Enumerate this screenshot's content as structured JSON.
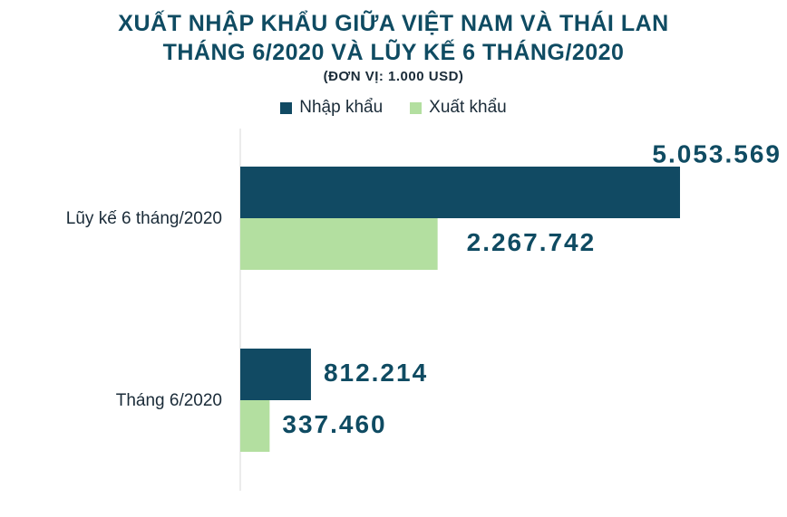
{
  "chart_data": {
    "type": "bar",
    "orientation": "horizontal",
    "title": "XUẤT NHẬP KHẨU GIỮA VIỆT NAM VÀ THÁI LAN",
    "subtitle": "THÁNG 6/2020 VÀ LŨY KẾ 6 THÁNG/2020",
    "unit_note": "(ĐƠN VỊ: 1.000 USD)",
    "categories": [
      "Lũy kế 6 tháng/2020",
      "Tháng 6/2020"
    ],
    "series": [
      {
        "name": "Nhập khẩu",
        "values": [
          5053569,
          812214
        ],
        "labels": [
          "5.053.569",
          "812.214"
        ],
        "color": "#114a63"
      },
      {
        "name": "Xuất khẩu",
        "values": [
          2267742,
          337460
        ],
        "labels": [
          "2.267.742",
          "337.460"
        ],
        "color": "#b3dfa0"
      }
    ],
    "xlim": [
      0,
      5053569
    ],
    "grid": false,
    "legend_position": "top"
  }
}
